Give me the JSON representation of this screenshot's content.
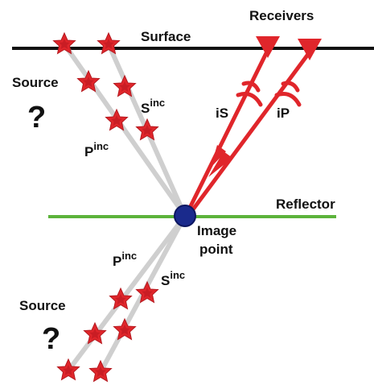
{
  "receivers": "Receivers",
  "surface": "Surface",
  "upper_source": {
    "label": "Source",
    "question": "?"
  },
  "upper_s_wave": {
    "letter": "S",
    "sup": "inc"
  },
  "upper_p_wave": {
    "letter": "P",
    "sup": "inc"
  },
  "converted_s": "iS",
  "converted_p": "iP",
  "reflector": "Reflector",
  "image_point": [
    "Image",
    "point"
  ],
  "lower_p_wave": {
    "letter": "P",
    "sup": "inc"
  },
  "lower_s_wave": {
    "letter": "S",
    "sup": "inc"
  },
  "lower_source": {
    "label": "Source",
    "question": "?"
  }
}
